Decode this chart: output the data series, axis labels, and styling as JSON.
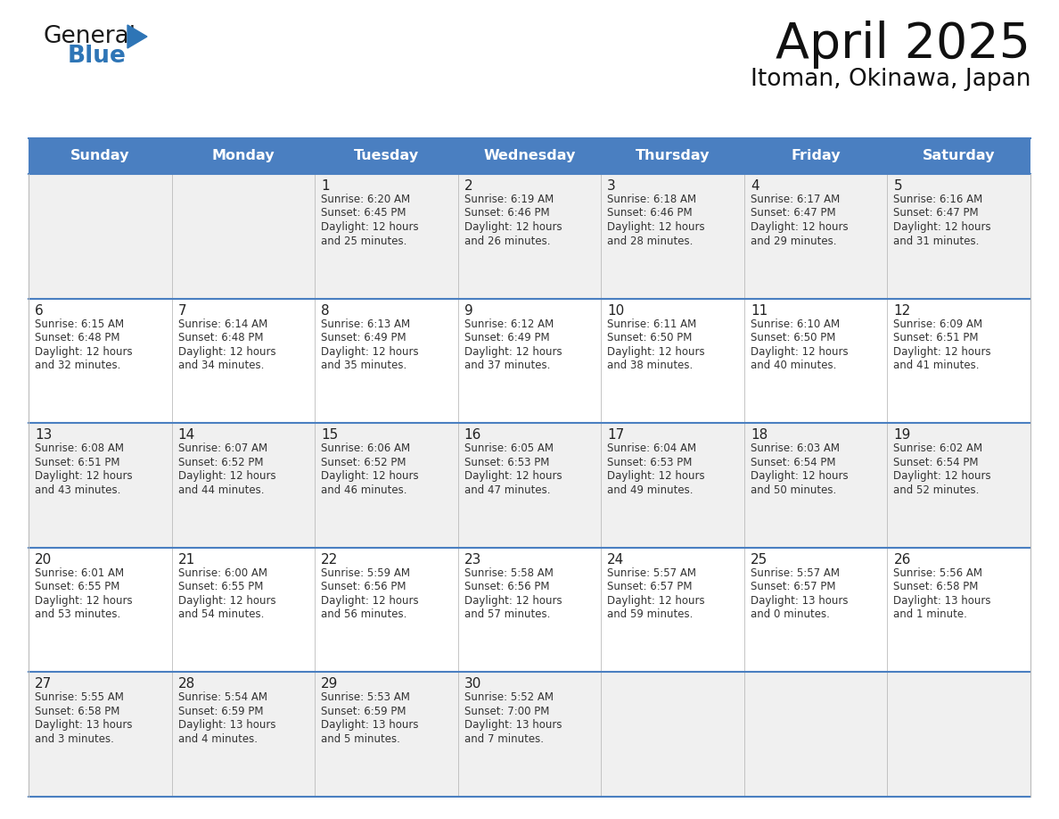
{
  "title": "April 2025",
  "subtitle": "Itoman, Okinawa, Japan",
  "days_of_week": [
    "Sunday",
    "Monday",
    "Tuesday",
    "Wednesday",
    "Thursday",
    "Friday",
    "Saturday"
  ],
  "header_bg": "#4A7FC1",
  "header_text": "#FFFFFF",
  "cell_bg_gray": "#F0F0F0",
  "cell_bg_white": "#FFFFFF",
  "day_number_color": "#222222",
  "text_color": "#333333",
  "line_color": "#4A7FC1",
  "logo_general_color": "#1a1a1a",
  "logo_blue_color": "#2E75B6",
  "logo_triangle_color": "#2E75B6",
  "weeks": [
    [
      {
        "day": null,
        "info": null
      },
      {
        "day": null,
        "info": null
      },
      {
        "day": 1,
        "info": "Sunrise: 6:20 AM\nSunset: 6:45 PM\nDaylight: 12 hours\nand 25 minutes."
      },
      {
        "day": 2,
        "info": "Sunrise: 6:19 AM\nSunset: 6:46 PM\nDaylight: 12 hours\nand 26 minutes."
      },
      {
        "day": 3,
        "info": "Sunrise: 6:18 AM\nSunset: 6:46 PM\nDaylight: 12 hours\nand 28 minutes."
      },
      {
        "day": 4,
        "info": "Sunrise: 6:17 AM\nSunset: 6:47 PM\nDaylight: 12 hours\nand 29 minutes."
      },
      {
        "day": 5,
        "info": "Sunrise: 6:16 AM\nSunset: 6:47 PM\nDaylight: 12 hours\nand 31 minutes."
      }
    ],
    [
      {
        "day": 6,
        "info": "Sunrise: 6:15 AM\nSunset: 6:48 PM\nDaylight: 12 hours\nand 32 minutes."
      },
      {
        "day": 7,
        "info": "Sunrise: 6:14 AM\nSunset: 6:48 PM\nDaylight: 12 hours\nand 34 minutes."
      },
      {
        "day": 8,
        "info": "Sunrise: 6:13 AM\nSunset: 6:49 PM\nDaylight: 12 hours\nand 35 minutes."
      },
      {
        "day": 9,
        "info": "Sunrise: 6:12 AM\nSunset: 6:49 PM\nDaylight: 12 hours\nand 37 minutes."
      },
      {
        "day": 10,
        "info": "Sunrise: 6:11 AM\nSunset: 6:50 PM\nDaylight: 12 hours\nand 38 minutes."
      },
      {
        "day": 11,
        "info": "Sunrise: 6:10 AM\nSunset: 6:50 PM\nDaylight: 12 hours\nand 40 minutes."
      },
      {
        "day": 12,
        "info": "Sunrise: 6:09 AM\nSunset: 6:51 PM\nDaylight: 12 hours\nand 41 minutes."
      }
    ],
    [
      {
        "day": 13,
        "info": "Sunrise: 6:08 AM\nSunset: 6:51 PM\nDaylight: 12 hours\nand 43 minutes."
      },
      {
        "day": 14,
        "info": "Sunrise: 6:07 AM\nSunset: 6:52 PM\nDaylight: 12 hours\nand 44 minutes."
      },
      {
        "day": 15,
        "info": "Sunrise: 6:06 AM\nSunset: 6:52 PM\nDaylight: 12 hours\nand 46 minutes."
      },
      {
        "day": 16,
        "info": "Sunrise: 6:05 AM\nSunset: 6:53 PM\nDaylight: 12 hours\nand 47 minutes."
      },
      {
        "day": 17,
        "info": "Sunrise: 6:04 AM\nSunset: 6:53 PM\nDaylight: 12 hours\nand 49 minutes."
      },
      {
        "day": 18,
        "info": "Sunrise: 6:03 AM\nSunset: 6:54 PM\nDaylight: 12 hours\nand 50 minutes."
      },
      {
        "day": 19,
        "info": "Sunrise: 6:02 AM\nSunset: 6:54 PM\nDaylight: 12 hours\nand 52 minutes."
      }
    ],
    [
      {
        "day": 20,
        "info": "Sunrise: 6:01 AM\nSunset: 6:55 PM\nDaylight: 12 hours\nand 53 minutes."
      },
      {
        "day": 21,
        "info": "Sunrise: 6:00 AM\nSunset: 6:55 PM\nDaylight: 12 hours\nand 54 minutes."
      },
      {
        "day": 22,
        "info": "Sunrise: 5:59 AM\nSunset: 6:56 PM\nDaylight: 12 hours\nand 56 minutes."
      },
      {
        "day": 23,
        "info": "Sunrise: 5:58 AM\nSunset: 6:56 PM\nDaylight: 12 hours\nand 57 minutes."
      },
      {
        "day": 24,
        "info": "Sunrise: 5:57 AM\nSunset: 6:57 PM\nDaylight: 12 hours\nand 59 minutes."
      },
      {
        "day": 25,
        "info": "Sunrise: 5:57 AM\nSunset: 6:57 PM\nDaylight: 13 hours\nand 0 minutes."
      },
      {
        "day": 26,
        "info": "Sunrise: 5:56 AM\nSunset: 6:58 PM\nDaylight: 13 hours\nand 1 minute."
      }
    ],
    [
      {
        "day": 27,
        "info": "Sunrise: 5:55 AM\nSunset: 6:58 PM\nDaylight: 13 hours\nand 3 minutes."
      },
      {
        "day": 28,
        "info": "Sunrise: 5:54 AM\nSunset: 6:59 PM\nDaylight: 13 hours\nand 4 minutes."
      },
      {
        "day": 29,
        "info": "Sunrise: 5:53 AM\nSunset: 6:59 PM\nDaylight: 13 hours\nand 5 minutes."
      },
      {
        "day": 30,
        "info": "Sunrise: 5:52 AM\nSunset: 7:00 PM\nDaylight: 13 hours\nand 7 minutes."
      },
      {
        "day": null,
        "info": null
      },
      {
        "day": null,
        "info": null
      },
      {
        "day": null,
        "info": null
      }
    ]
  ],
  "row_bg": [
    "#F0F0F0",
    "#FFFFFF",
    "#F0F0F0",
    "#FFFFFF",
    "#F0F0F0"
  ]
}
